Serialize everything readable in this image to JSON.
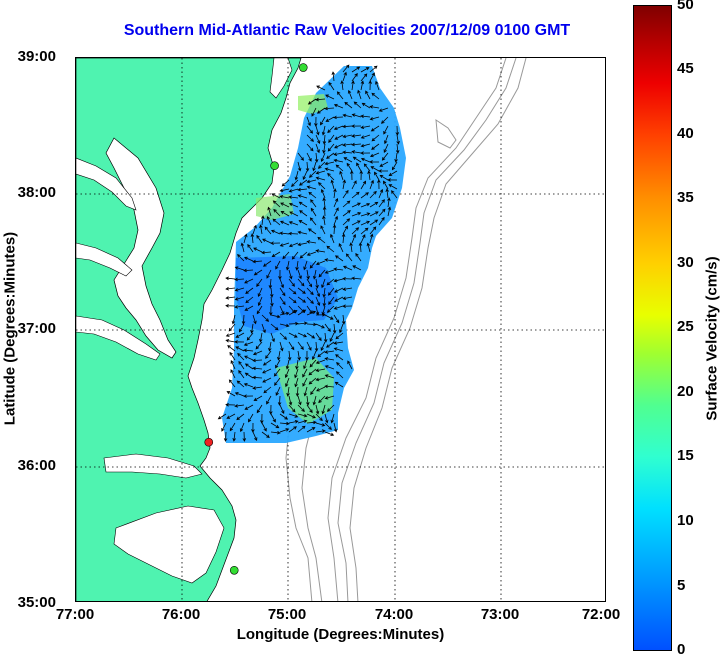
{
  "title": "Southern Mid-Atlantic Raw Velocities 2007/12/09 0100 GMT",
  "axes": {
    "xlabel": "Longitude (Degrees:Minutes)",
    "ylabel": "Latitude (Degrees:Minutes)",
    "xticks": [
      "77:00",
      "76:00",
      "75:00",
      "74:00",
      "73:00",
      "72:00"
    ],
    "yticks": [
      "39:00",
      "38:00",
      "37:00",
      "36:00",
      "35:00"
    ],
    "xlim": [
      -77,
      -72
    ],
    "ylim": [
      35,
      39
    ],
    "grid": "dotted"
  },
  "colorbar": {
    "label": "Surface Velocity (cm/s)",
    "ticks": [
      "50",
      "45",
      "40",
      "35",
      "30",
      "25",
      "20",
      "15",
      "10",
      "5",
      "0"
    ],
    "range": [
      0,
      50
    ]
  },
  "colors": {
    "land": "#4ff3b0",
    "title": "#0000ee",
    "velocity_field": "#2aa8ff",
    "site_green": "#33dd33",
    "site_red": "#ee2222"
  },
  "sites": [
    {
      "lon": -74.86,
      "lat": 38.93,
      "color": "green"
    },
    {
      "lon": -75.13,
      "lat": 38.21,
      "color": "green"
    },
    {
      "lon": -75.75,
      "lat": 36.18,
      "color": "red"
    },
    {
      "lon": -75.51,
      "lat": 35.24,
      "color": "green"
    }
  ]
}
